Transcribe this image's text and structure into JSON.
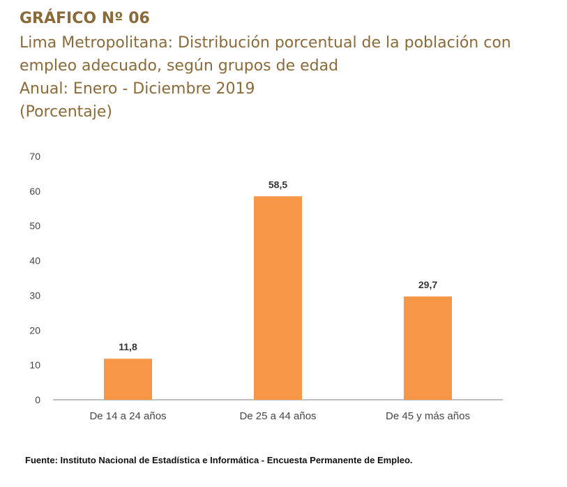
{
  "header": {
    "heading": "GRÁFICO Nº 06",
    "subtitle_lines": [
      "Lima Metropolitana: Distribución porcentual de la población con",
      "empleo adecuado, según grupos de edad",
      "Anual: Enero - Diciembre 2019",
      "(Porcentaje)"
    ]
  },
  "chart_data": {
    "type": "bar",
    "title": "Lima Metropolitana: Distribución porcentual de la población con empleo adecuado, según grupos de edad",
    "categories": [
      "De 14 a 24 años",
      "De 25 a 44 años",
      "De 45 y más años"
    ],
    "values": [
      11.8,
      58.5,
      29.7
    ],
    "value_labels": [
      "11,8",
      "58,5",
      "29,7"
    ],
    "ylim": [
      0,
      70
    ],
    "yticks": [
      0,
      10,
      20,
      30,
      40,
      50,
      60,
      70
    ],
    "xlabel": "",
    "ylabel": "",
    "grid": false,
    "bar_color": "#f79646"
  },
  "footer": {
    "source": "Fuente: Instituto Nacional de Estadística e Informática - Encuesta Permanente de Empleo."
  }
}
